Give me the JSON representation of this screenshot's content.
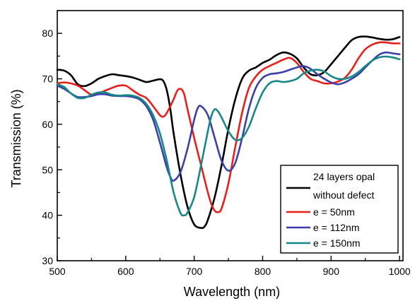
{
  "chart_data": {
    "type": "line",
    "title": "",
    "xlabel": "Wavelength (nm)",
    "ylabel": "Transmission (%)",
    "xlim": [
      500,
      1005
    ],
    "ylim": [
      30,
      85
    ],
    "x_ticks": [
      500,
      600,
      700,
      800,
      900,
      1000
    ],
    "y_ticks": [
      30,
      40,
      50,
      60,
      70,
      80
    ],
    "grid": false,
    "legend_position": "bottom-right",
    "series": [
      {
        "name_lines": [
          "24 layers opal",
          "without defect"
        ],
        "color": "#000000",
        "x": [
          500,
          510,
          520,
          530,
          540,
          550,
          560,
          570,
          580,
          590,
          600,
          610,
          620,
          630,
          640,
          650,
          655,
          660,
          665,
          670,
          680,
          690,
          700,
          710,
          715,
          720,
          730,
          740,
          750,
          760,
          770,
          780,
          790,
          800,
          810,
          820,
          830,
          840,
          850,
          860,
          870,
          880,
          890,
          900,
          910,
          920,
          930,
          940,
          950,
          960,
          970,
          980,
          990,
          1000
        ],
        "y": [
          72,
          71.8,
          70.8,
          68.8,
          68.4,
          69,
          70,
          70.6,
          71,
          70.8,
          70.6,
          70.3,
          69.8,
          69.3,
          69.6,
          69.9,
          69.5,
          67.5,
          63.5,
          58,
          49,
          42,
          38,
          37.2,
          37.5,
          39,
          44,
          51,
          59,
          65.5,
          70,
          71.8,
          72.5,
          73.5,
          74.2,
          75.2,
          75.8,
          75.5,
          74.5,
          72.5,
          71,
          70.8,
          71.5,
          73.2,
          75,
          76.8,
          78.5,
          79.2,
          79.3,
          79.1,
          78.8,
          78.6,
          78.7,
          79.2
        ]
      },
      {
        "name": "e = 50nm",
        "color": "#e8201c",
        "x": [
          500,
          510,
          520,
          530,
          540,
          550,
          560,
          570,
          580,
          590,
          600,
          610,
          620,
          630,
          640,
          650,
          655,
          660,
          670,
          675,
          680,
          685,
          690,
          700,
          710,
          720,
          725,
          730,
          735,
          740,
          750,
          760,
          770,
          780,
          790,
          800,
          810,
          820,
          830,
          840,
          850,
          860,
          870,
          880,
          890,
          900,
          910,
          920,
          930,
          940,
          950,
          960,
          970,
          980,
          990,
          1000
        ],
        "y": [
          69,
          69.2,
          69,
          68.5,
          67.5,
          66.5,
          66.8,
          67.4,
          68,
          68.5,
          68.5,
          67.5,
          66.5,
          65.8,
          64,
          62,
          61.7,
          62.5,
          65.5,
          67.3,
          67.8,
          66.8,
          63.5,
          57,
          51,
          45,
          42.5,
          41,
          40.7,
          41.5,
          47,
          55,
          62.5,
          68,
          70.5,
          72,
          72.8,
          73.5,
          74.2,
          74.6,
          73.5,
          71.5,
          70,
          69.5,
          69,
          69,
          69.4,
          70.2,
          72,
          74.5,
          76.5,
          77.5,
          78,
          78,
          77.8,
          77.8
        ]
      },
      {
        "name": "e = 112nm",
        "color": "#3b3fa8",
        "x": [
          500,
          510,
          520,
          530,
          540,
          550,
          560,
          570,
          580,
          590,
          600,
          610,
          620,
          630,
          640,
          650,
          660,
          665,
          670,
          680,
          690,
          700,
          705,
          710,
          720,
          730,
          740,
          750,
          760,
          770,
          780,
          790,
          800,
          810,
          820,
          830,
          840,
          850,
          860,
          870,
          880,
          890,
          900,
          910,
          920,
          930,
          940,
          950,
          960,
          970,
          980,
          990,
          1000
        ],
        "y": [
          68.5,
          67.8,
          66.8,
          66,
          66,
          66.2,
          66.6,
          66.6,
          66.3,
          66.2,
          66.2,
          66,
          65.5,
          64,
          61,
          56,
          50.5,
          48.5,
          47.6,
          49.5,
          54.5,
          61,
          63.5,
          64,
          62,
          57,
          52,
          49.8,
          51.5,
          57,
          63.5,
          68,
          70.2,
          71,
          71.2,
          71.5,
          72,
          72.5,
          72.8,
          72.2,
          71,
          70,
          69.2,
          68.8,
          69.2,
          70,
          71,
          72.5,
          74,
          75.3,
          75.8,
          75.6,
          75.4
        ]
      },
      {
        "name": "e = 150nm",
        "color": "#178887",
        "x": [
          500,
          510,
          520,
          530,
          540,
          550,
          560,
          570,
          580,
          590,
          600,
          610,
          620,
          630,
          640,
          650,
          660,
          670,
          680,
          685,
          690,
          700,
          710,
          720,
          725,
          730,
          735,
          740,
          750,
          760,
          770,
          780,
          790,
          800,
          810,
          820,
          830,
          840,
          850,
          860,
          870,
          880,
          890,
          900,
          910,
          920,
          930,
          940,
          950,
          960,
          970,
          980,
          990,
          1000
        ],
        "y": [
          68.8,
          68.2,
          66.8,
          65.8,
          65.8,
          66.5,
          67,
          67,
          66.5,
          66.3,
          66.4,
          66.3,
          65.8,
          64.5,
          62,
          58,
          52,
          45,
          40.5,
          40,
          40.5,
          44,
          51,
          58.5,
          61.8,
          63.3,
          62.8,
          61.5,
          58.5,
          56.6,
          57,
          59.5,
          63.5,
          67,
          69,
          69.5,
          69.3,
          69.5,
          70,
          71.2,
          71.8,
          72,
          71.6,
          70.6,
          70,
          70,
          70.5,
          71.5,
          72.8,
          74,
          74.7,
          74.9,
          74.7,
          74.3
        ]
      }
    ]
  }
}
